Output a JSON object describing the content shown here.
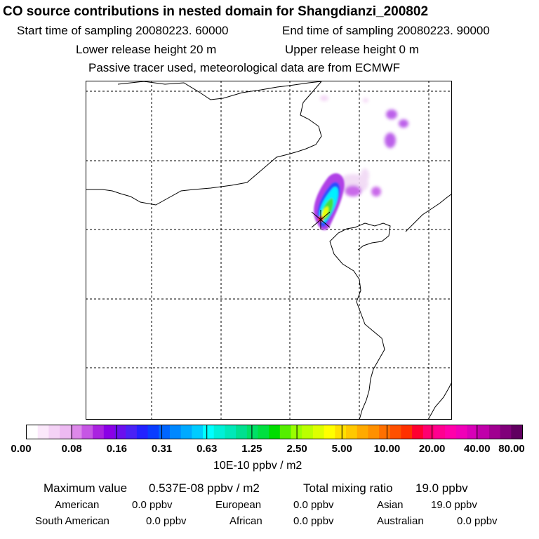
{
  "header": {
    "title": "CO  source contributions in nested domain for Shangdianzi_200802",
    "start_label": "Start time of sampling 20080223. 60000",
    "end_label": "End time of sampling 20080223. 90000",
    "lower_label": "Lower release height   20 m",
    "upper_label": "Upper release height    0 m",
    "tracer_note": "Passive tracer used, meteorological data are from ECMWF"
  },
  "map": {
    "station": "Shangdianzi",
    "station_marker": "x-marker-icon"
  },
  "colorbar": {
    "ticks": [
      "0.00",
      "0.08",
      "0.16",
      "0.31",
      "0.63",
      "1.25",
      "2.50",
      "5.00",
      "10.00",
      "20.00",
      "40.00",
      "80.00"
    ],
    "units": "10E-10 ppbv / m2",
    "colors": [
      "#ffffff",
      "#fbe8fb",
      "#f4d2f6",
      "#edbaf2",
      "#dd88ea",
      "#c656e4",
      "#aa22e0",
      "#8a00e6",
      "#6a10ee",
      "#4a22f5",
      "#2222ff",
      "#0a3cff",
      "#0066ff",
      "#0088ff",
      "#00aaff",
      "#00ccff",
      "#00ffff",
      "#00f0d8",
      "#00e8b8",
      "#00e090",
      "#00e066",
      "#00e040",
      "#00dd00",
      "#55ee00",
      "#99ff00",
      "#bbff00",
      "#ddff00",
      "#ffff00",
      "#ffe000",
      "#ffc800",
      "#ffaa00",
      "#ff9000",
      "#ff7000",
      "#ff5000",
      "#ff3000",
      "#ff0030",
      "#ff0070",
      "#ff0090",
      "#ff00aa",
      "#f000b8",
      "#d800b8",
      "#c000aa",
      "#a00090",
      "#80007a",
      "#600060"
    ]
  },
  "stats": {
    "max_label": "Maximum value",
    "max_value": "0.537E-08 ppbv / m2",
    "total_label": "Total mixing ratio",
    "total_value": "19.0 ppbv",
    "regions": [
      {
        "name": "American",
        "value": "0.0 ppbv"
      },
      {
        "name": "European",
        "value": "0.0 ppbv"
      },
      {
        "name": "Asian",
        "value": "19.0 ppbv"
      },
      {
        "name": "South American",
        "value": "0.0 ppbv"
      },
      {
        "name": "African",
        "value": "0.0 ppbv"
      },
      {
        "name": "Australian",
        "value": "0.0 ppbv"
      }
    ]
  }
}
